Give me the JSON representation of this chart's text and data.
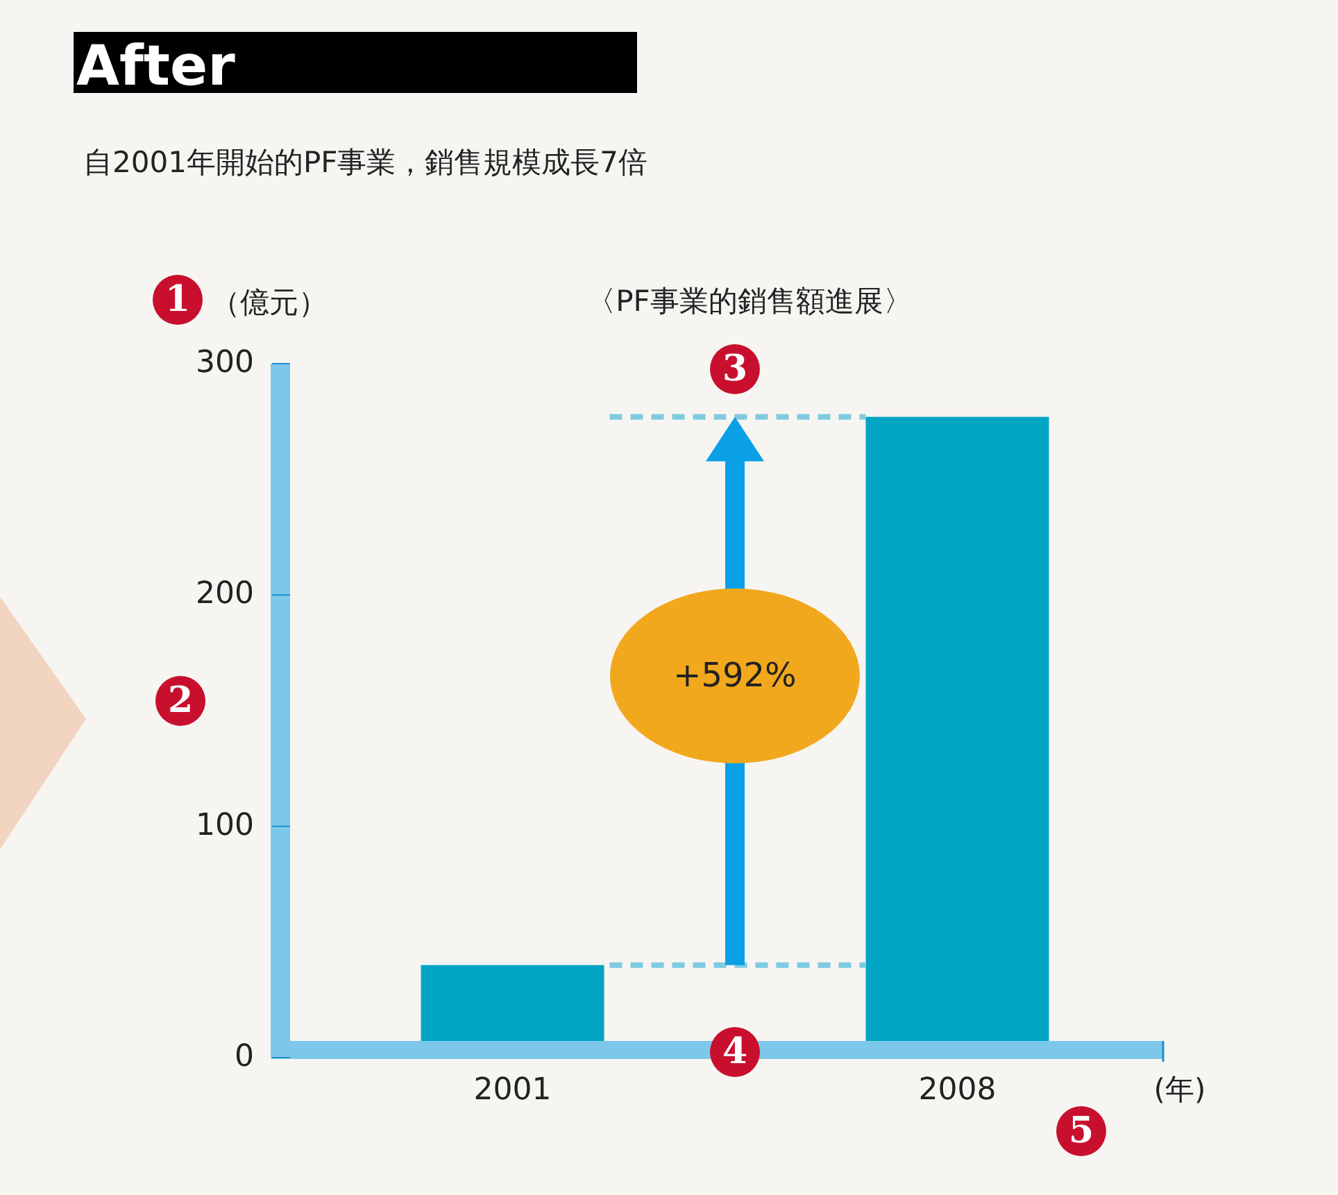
{
  "chart_data": {
    "type": "bar",
    "title": "After",
    "subtitle": "自2001年開始的PF事業，銷售規模成長7倍",
    "xlabel": "(年)",
    "ylabel": "（億元）",
    "categories": [
      "2001",
      "2008"
    ],
    "values": [
      40,
      277
    ],
    "color": "#00a5c4",
    "ylim": [
      0,
      300
    ],
    "yticks": [
      0,
      100,
      200,
      300
    ],
    "ref_lines": [
      {
        "axis": "y",
        "value": 40,
        "color": "#7ecbe0",
        "line_style": "dashed"
      },
      {
        "axis": "y",
        "value": 277,
        "color": "#7ecbe0",
        "line_style": "dashed"
      }
    ],
    "annotations": [
      "〈PF事業的銷售額進展〉",
      "+592%",
      "1",
      "2",
      "3",
      "4",
      "5"
    ]
  }
}
